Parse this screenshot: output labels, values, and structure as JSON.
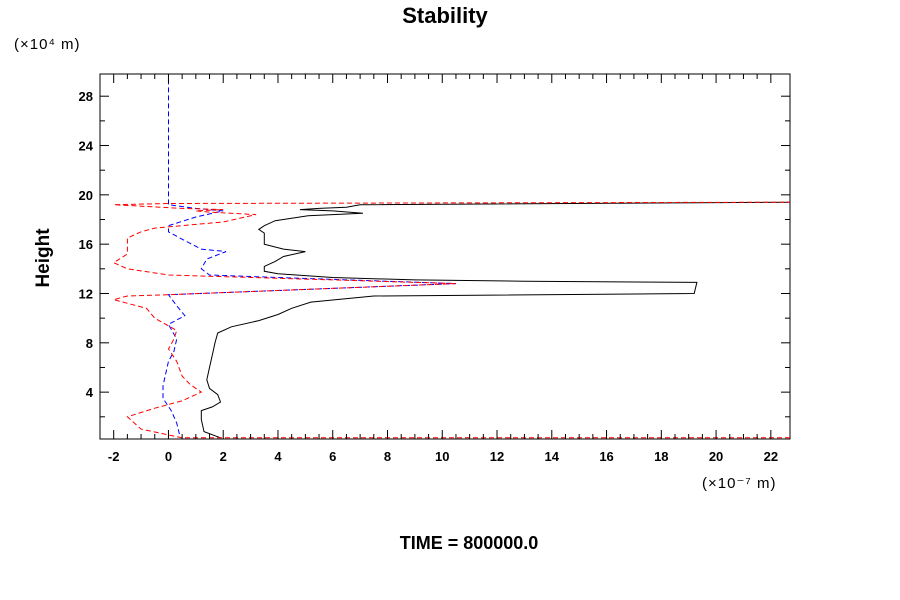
{
  "chart_data": {
    "type": "line",
    "title": "Stability",
    "ylabel": "Height",
    "y_unit_label": "(×10⁴ m)",
    "x_unit_label": "(×10⁻⁷ m)",
    "footer": "TIME = 800000.0",
    "xlim": [
      -2.5,
      22.7
    ],
    "ylim": [
      0.2,
      29.8
    ],
    "x_ticks": [
      "-2",
      "0",
      "2",
      "4",
      "6",
      "8",
      "10",
      "12",
      "14",
      "16",
      "18",
      "20",
      "22"
    ],
    "y_ticks": [
      "4",
      "8",
      "12",
      "16",
      "20",
      "24",
      "28"
    ],
    "x_tick_values": [
      -2,
      0,
      2,
      4,
      6,
      8,
      10,
      12,
      14,
      16,
      18,
      20,
      22
    ],
    "y_tick_values": [
      4,
      8,
      12,
      16,
      20,
      24,
      28
    ],
    "series": [
      {
        "color": "#000000",
        "dash": "solid",
        "points": [
          [
            1.9,
            0.3
          ],
          [
            1.3,
            0.8
          ],
          [
            1.2,
            1.8
          ],
          [
            1.2,
            2.5
          ],
          [
            1.6,
            2.8
          ],
          [
            1.9,
            3.2
          ],
          [
            1.8,
            3.8
          ],
          [
            1.5,
            4.3
          ],
          [
            1.4,
            5.0
          ],
          [
            1.5,
            6.0
          ],
          [
            1.6,
            7.0
          ],
          [
            1.7,
            8.0
          ],
          [
            1.8,
            8.8
          ],
          [
            2.3,
            9.3
          ],
          [
            3.3,
            9.8
          ],
          [
            4.0,
            10.3
          ],
          [
            4.5,
            10.8
          ],
          [
            5.2,
            11.3
          ],
          [
            7.5,
            11.8
          ],
          [
            19.2,
            12.0
          ],
          [
            19.3,
            12.9
          ],
          [
            13.0,
            13.0
          ],
          [
            9.0,
            13.1
          ],
          [
            6.0,
            13.3
          ],
          [
            4.0,
            13.6
          ],
          [
            3.5,
            13.8
          ],
          [
            3.5,
            14.2
          ],
          [
            3.9,
            14.6
          ],
          [
            4.2,
            15.0
          ],
          [
            5.0,
            15.4
          ],
          [
            4.2,
            15.6
          ],
          [
            3.5,
            16.0
          ],
          [
            3.5,
            16.4
          ],
          [
            3.5,
            16.9
          ],
          [
            3.3,
            17.2
          ],
          [
            3.5,
            17.5
          ],
          [
            3.9,
            17.9
          ],
          [
            5.1,
            18.3
          ],
          [
            7.1,
            18.5
          ],
          [
            6.0,
            18.7
          ],
          [
            4.8,
            18.8
          ],
          [
            5.5,
            18.9
          ],
          [
            6.5,
            19.0
          ],
          [
            7.0,
            19.2
          ],
          [
            22.7,
            19.4
          ]
        ]
      },
      {
        "color": "#0000ff",
        "dash": "dashed",
        "points": [
          [
            0.4,
            0.6
          ],
          [
            0.3,
            1.5
          ],
          [
            0.1,
            2.5
          ],
          [
            -0.2,
            3.5
          ],
          [
            -0.2,
            4.5
          ],
          [
            -0.1,
            5.5
          ],
          [
            0.0,
            6.5
          ],
          [
            0.2,
            7.3
          ],
          [
            0.3,
            8.3
          ],
          [
            0.0,
            9.5
          ],
          [
            0.6,
            10.2
          ],
          [
            0.3,
            11.0
          ],
          [
            0.0,
            11.9
          ],
          [
            3.5,
            12.2
          ],
          [
            10.5,
            12.8
          ],
          [
            4.0,
            13.3
          ],
          [
            1.5,
            13.5
          ],
          [
            1.2,
            14.0
          ],
          [
            1.4,
            14.8
          ],
          [
            2.1,
            15.4
          ],
          [
            1.2,
            15.6
          ],
          [
            0.5,
            16.4
          ],
          [
            0.0,
            17.0
          ],
          [
            0.0,
            17.5
          ],
          [
            1.0,
            18.2
          ],
          [
            2.0,
            18.7
          ],
          [
            1.0,
            18.9
          ],
          [
            0.0,
            19.2
          ],
          [
            0.0,
            29.8
          ]
        ]
      },
      {
        "color": "#ff0000",
        "dash": "dashed",
        "points": [
          [
            22.7,
            0.3
          ],
          [
            0.5,
            0.3
          ],
          [
            -1.0,
            1.0
          ],
          [
            -1.5,
            2.0
          ],
          [
            -0.5,
            2.7
          ],
          [
            0.5,
            3.3
          ],
          [
            1.2,
            4.0
          ],
          [
            0.8,
            4.6
          ],
          [
            0.5,
            5.3
          ],
          [
            0.3,
            6.5
          ],
          [
            0.0,
            7.5
          ],
          [
            0.2,
            8.3
          ],
          [
            0.3,
            9.0
          ],
          [
            -0.5,
            10.0
          ],
          [
            -0.8,
            10.8
          ],
          [
            -2.0,
            11.5
          ],
          [
            -1.5,
            11.8
          ],
          [
            0.0,
            11.9
          ],
          [
            10.5,
            12.8
          ],
          [
            0.0,
            13.5
          ],
          [
            -1.5,
            14.0
          ],
          [
            -2.0,
            14.5
          ],
          [
            -1.5,
            15.2
          ],
          [
            -1.5,
            16.2
          ],
          [
            -1.5,
            16.5
          ],
          [
            -1.0,
            17.0
          ],
          [
            -0.5,
            17.3
          ],
          [
            1.0,
            17.6
          ],
          [
            2.0,
            17.8
          ],
          [
            3.2,
            18.4
          ],
          [
            1.5,
            18.6
          ],
          [
            1.0,
            18.7
          ],
          [
            2.0,
            18.8
          ],
          [
            0.5,
            18.9
          ],
          [
            -2.0,
            19.2
          ],
          [
            0.0,
            19.3
          ],
          [
            22.7,
            19.4
          ]
        ]
      }
    ]
  }
}
